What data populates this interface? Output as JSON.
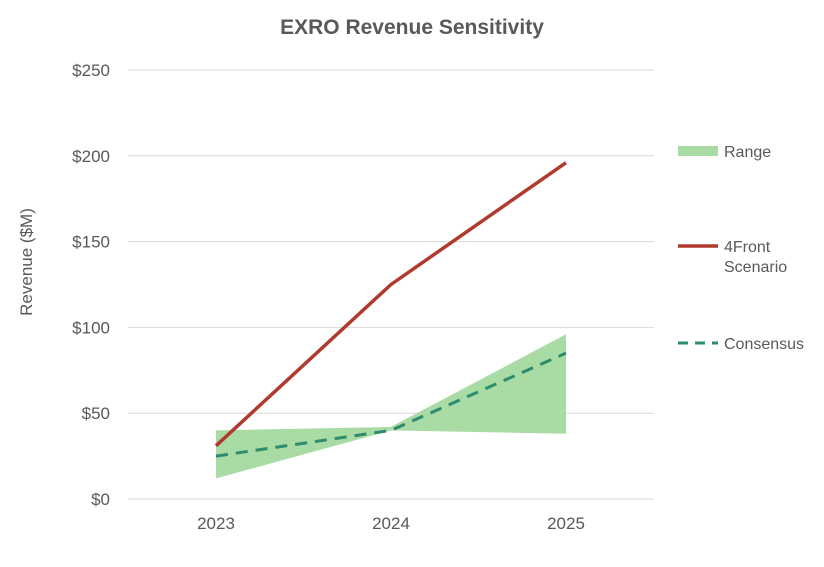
{
  "chart_data": {
    "type": "line",
    "title": "EXRO Revenue Sensitivity",
    "xlabel": "",
    "ylabel": "Revenue ($M)",
    "categories": [
      "2023",
      "2024",
      "2025"
    ],
    "ylim": [
      0,
      250
    ],
    "yticks": [
      0,
      50,
      100,
      150,
      200,
      250
    ],
    "ytick_labels": [
      "$0",
      "$50",
      "$100",
      "$150",
      "$200",
      "$250"
    ],
    "grid": true,
    "legend_position": "right",
    "range": {
      "name": "Range",
      "color": "#a9dba4",
      "low": [
        12,
        40,
        38
      ],
      "high": [
        40,
        42,
        96
      ]
    },
    "series": [
      {
        "name": "4Front Scenario",
        "name_lines": [
          "4Front",
          "Scenario"
        ],
        "values": [
          31,
          125,
          196
        ],
        "color": "#b03a2e",
        "style": "solid"
      },
      {
        "name": "Consensus",
        "values": [
          25,
          40,
          85
        ],
        "color": "#2e8b6e",
        "style": "dashed"
      }
    ]
  }
}
